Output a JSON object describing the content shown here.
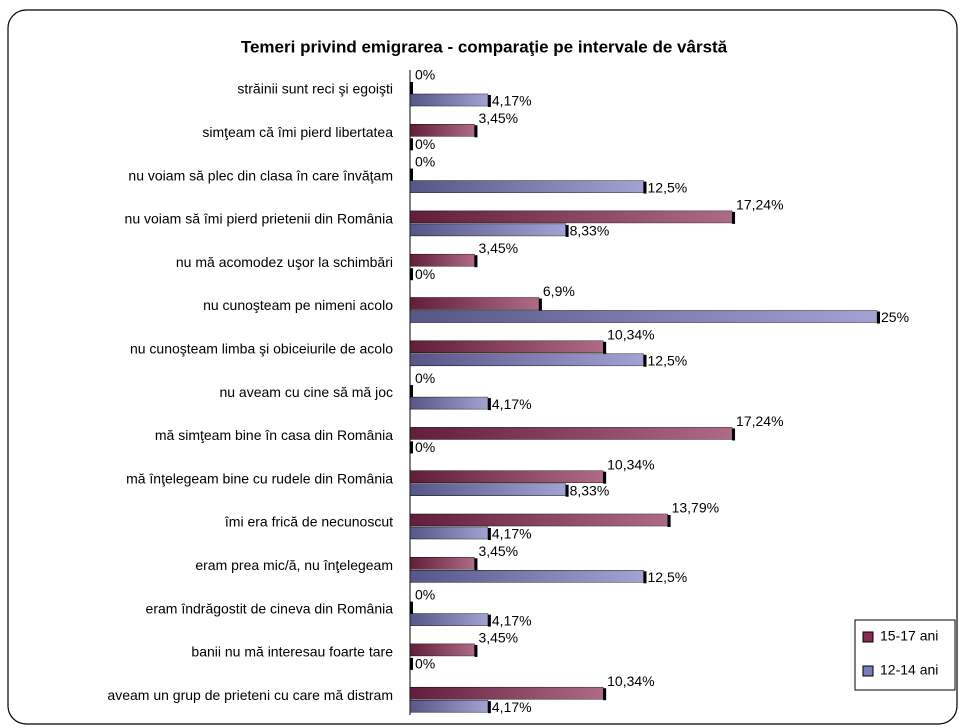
{
  "chart_data": {
    "type": "bar",
    "orientation": "horizontal",
    "title": "Temeri privind emigrarea - comparaţie pe intervale de vârstă",
    "categories": [
      "străinii sunt reci şi egoişti",
      "simţeam că îmi pierd libertatea",
      "nu voiam să plec din clasa în care învăţam",
      "nu voiam să îmi pierd prietenii din România",
      "nu mă acomodez uşor la schimbări",
      "nu cunoşteam pe nimeni acolo",
      "nu cunoşteam limba şi obiceiurile de acolo",
      "nu aveam cu cine să mă joc",
      "mă simţeam bine în casa din România",
      "mă înţelegeam bine cu rudele din România",
      "îmi era frică de necunoscut",
      "eram prea mic/ă, nu înţelegeam",
      "eram îndrăgostit de cineva din România",
      "banii nu mă interesau foarte tare",
      "aveam un grup de prieteni cu care mă distram"
    ],
    "series": [
      {
        "name": "15-17 ani",
        "color": "#8b2a52",
        "values": [
          0,
          3.45,
          0,
          17.24,
          3.45,
          6.9,
          10.34,
          0,
          17.24,
          10.34,
          13.79,
          3.45,
          0,
          3.45,
          10.34
        ],
        "value_labels": [
          "0%",
          "3,45%",
          "0%",
          "17,24%",
          "3,45%",
          "6,9%",
          "10,34%",
          "0%",
          "17,24%",
          "10,34%",
          "13,79%",
          "3,45%",
          "0%",
          "3,45%",
          "10,34%"
        ]
      },
      {
        "name": "12-14 ani",
        "color": "#7a7ac0",
        "values": [
          4.17,
          0,
          12.5,
          8.33,
          0,
          25,
          12.5,
          4.17,
          0,
          8.33,
          4.17,
          12.5,
          4.17,
          0,
          4.17
        ],
        "value_labels": [
          "4,17%",
          "0%",
          "12,5%",
          "8,33%",
          "0%",
          "25%",
          "12,5%",
          "4,17%",
          "0%",
          "8,33%",
          "4,17%",
          "12,5%",
          "4,17%",
          "0%",
          "4,17%"
        ]
      }
    ],
    "legend": "lower right"
  }
}
